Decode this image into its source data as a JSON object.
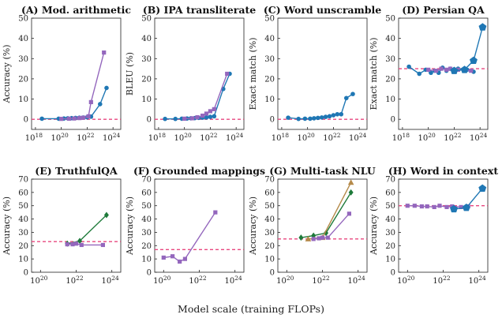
{
  "figure": {
    "xlabel": "Model scale (training FLOPs)",
    "colors": {
      "baseline": "#e8477f",
      "blue": "#1f77b4",
      "purple": "#9467bd",
      "green": "#1e7a3a",
      "brown": "#b58a4a",
      "axis": "#222222"
    }
  },
  "chart_data": [
    {
      "type": "line",
      "title": "(A) Mod. arithmetic",
      "ylabel": "Accuracy (%)",
      "xlog": true,
      "xlim": [
        17.7,
        24.6
      ],
      "ylim": [
        -5,
        50
      ],
      "xticks": [
        18,
        20,
        22,
        24
      ],
      "yticks": [
        0,
        10,
        20,
        30,
        40,
        50
      ],
      "baseline": 0,
      "series": [
        {
          "color": "blue",
          "marker": "circle",
          "x": [
            18.5,
            19.8,
            20.2,
            20.5,
            20.8,
            21.1,
            21.4,
            21.7,
            22.0,
            22.3,
            23.0,
            23.5
          ],
          "y": [
            0.3,
            0.3,
            0.4,
            0.5,
            0.6,
            0.7,
            0.8,
            0.9,
            1.0,
            1.3,
            7.5,
            15.5
          ]
        },
        {
          "color": "purple",
          "marker": "square",
          "x": [
            20.0,
            20.6,
            21.0,
            21.4,
            21.7,
            22.1,
            22.3,
            23.3
          ],
          "y": [
            0.2,
            0.3,
            0.4,
            0.6,
            0.8,
            1.5,
            8.5,
            33.0
          ]
        }
      ]
    },
    {
      "type": "line",
      "title": "(B) IPA transliterate",
      "ylabel": "BLEU (%)",
      "xlog": true,
      "xlim": [
        17.7,
        24.6
      ],
      "ylim": [
        -5,
        50
      ],
      "xticks": [
        18,
        20,
        22,
        24
      ],
      "yticks": [
        0,
        10,
        20,
        30,
        40,
        50
      ],
      "baseline": 0,
      "series": [
        {
          "color": "blue",
          "marker": "circle",
          "x": [
            18.5,
            19.3,
            19.8,
            20.2,
            20.5,
            20.8,
            21.1,
            21.4,
            21.7,
            22.0,
            22.3,
            23.0,
            23.5
          ],
          "y": [
            0.2,
            0.2,
            0.3,
            0.4,
            0.5,
            0.6,
            0.7,
            0.8,
            0.9,
            1.2,
            1.5,
            15.0,
            22.5
          ]
        },
        {
          "color": "purple",
          "marker": "square",
          "x": [
            20.0,
            20.6,
            21.0,
            21.4,
            21.7,
            22.0,
            22.3,
            23.3
          ],
          "y": [
            0.3,
            0.5,
            1.0,
            1.8,
            2.8,
            4.0,
            5.0,
            22.5
          ]
        }
      ]
    },
    {
      "type": "line",
      "title": "(C) Word unscramble",
      "ylabel": "Exact match (%)",
      "xlog": true,
      "xlim": [
        17.7,
        24.6
      ],
      "ylim": [
        -5,
        50
      ],
      "xticks": [
        18,
        20,
        22,
        24
      ],
      "yticks": [
        0,
        10,
        20,
        30,
        40,
        50
      ],
      "baseline": 0,
      "series": [
        {
          "color": "blue",
          "marker": "circle",
          "x": [
            18.5,
            19.3,
            19.8,
            20.2,
            20.5,
            20.8,
            21.1,
            21.4,
            21.7,
            22.0,
            22.3,
            22.6,
            23.0,
            23.5
          ],
          "y": [
            0.8,
            0.2,
            0.3,
            0.3,
            0.5,
            0.7,
            0.9,
            1.2,
            1.5,
            2.0,
            2.5,
            2.5,
            10.5,
            12.5
          ]
        }
      ]
    },
    {
      "type": "line",
      "title": "(D) Persian QA",
      "ylabel": "Exact match (%)",
      "xlog": true,
      "xlim": [
        17.7,
        24.6
      ],
      "ylim": [
        -5,
        50
      ],
      "xticks": [
        18,
        20,
        22,
        24
      ],
      "yticks": [
        0,
        10,
        20,
        30,
        40,
        50
      ],
      "baseline": 25,
      "series": [
        {
          "color": "blue",
          "marker": "circle",
          "x": [
            18.5,
            19.3,
            19.8,
            20.2,
            20.5,
            20.8,
            21.1,
            21.4,
            21.7,
            22.0,
            22.3,
            23.0,
            23.5
          ],
          "y": [
            26.0,
            22.5,
            24.5,
            23.0,
            24.0,
            23.0,
            25.5,
            24.0,
            25.0,
            24.0,
            25.0,
            24.5,
            23.5
          ]
        },
        {
          "color": "purple",
          "marker": "square",
          "x": [
            20.0,
            20.6,
            21.0,
            21.4,
            21.7,
            22.0,
            22.3,
            23.3
          ],
          "y": [
            24.5,
            24.0,
            25.0,
            24.5,
            25.0,
            24.0,
            24.5,
            24.0
          ]
        },
        {
          "color": "blue",
          "marker": "pentagon",
          "x": [
            22.0,
            22.8,
            23.5,
            24.2
          ],
          "y": [
            24.0,
            24.5,
            29.0,
            45.5
          ]
        }
      ]
    },
    {
      "type": "line",
      "title": "(E) TruthfulQA",
      "ylabel": "Accuracy (%)",
      "xlog": true,
      "xlim": [
        19.5,
        24.5
      ],
      "ylim": [
        0,
        70
      ],
      "xticks": [
        20,
        22,
        24
      ],
      "yticks": [
        0,
        10,
        20,
        30,
        40,
        50,
        60,
        70
      ],
      "baseline": 23,
      "series": [
        {
          "color": "green",
          "marker": "diamond",
          "x": [
            21.5,
            22.2,
            23.7
          ],
          "y": [
            21.5,
            23.5,
            43.0
          ]
        },
        {
          "color": "purple",
          "marker": "square",
          "x": [
            21.5,
            21.8,
            22.0,
            22.3,
            23.5
          ],
          "y": [
            21.0,
            21.0,
            21.5,
            20.5,
            20.5
          ]
        }
      ]
    },
    {
      "type": "line",
      "title": "(F) Grounded mappings",
      "ylabel": "Accuracy (%)",
      "xlog": true,
      "xlim": [
        19.5,
        24.5
      ],
      "ylim": [
        0,
        70
      ],
      "xticks": [
        20,
        22,
        24
      ],
      "yticks": [
        0,
        10,
        20,
        30,
        40,
        50,
        60,
        70
      ],
      "baseline": 17,
      "series": [
        {
          "color": "purple",
          "marker": "square",
          "x": [
            20.0,
            20.5,
            20.9,
            21.2,
            22.9
          ],
          "y": [
            11.0,
            12.0,
            8.0,
            10.0,
            45.0
          ]
        }
      ]
    },
    {
      "type": "line",
      "title": "(G) Multi-task NLU",
      "ylabel": "Accuracy (%)",
      "xlog": true,
      "xlim": [
        19.5,
        24.5
      ],
      "ylim": [
        0,
        70
      ],
      "xticks": [
        20,
        22,
        24
      ],
      "yticks": [
        0,
        10,
        20,
        30,
        40,
        50,
        60,
        70
      ],
      "baseline": 25,
      "series": [
        {
          "color": "green",
          "marker": "diamond",
          "x": [
            20.8,
            21.5,
            22.2,
            23.6
          ],
          "y": [
            26.0,
            27.5,
            29.5,
            60.0
          ]
        },
        {
          "color": "brown",
          "marker": "triangle",
          "x": [
            21.2,
            22.0,
            23.6
          ],
          "y": [
            25.0,
            26.0,
            67.5
          ]
        },
        {
          "color": "purple",
          "marker": "square",
          "x": [
            21.5,
            21.8,
            22.0,
            22.3,
            23.5
          ],
          "y": [
            25.0,
            25.5,
            26.0,
            26.0,
            44.0
          ]
        }
      ]
    },
    {
      "type": "line",
      "title": "(H) Word in context",
      "ylabel": "Accuracy (%)",
      "xlog": true,
      "xlim": [
        19.5,
        24.5
      ],
      "ylim": [
        0,
        70
      ],
      "xticks": [
        20,
        22,
        24
      ],
      "yticks": [
        0,
        10,
        20,
        30,
        40,
        50,
        60,
        70
      ],
      "baseline": 50,
      "series": [
        {
          "color": "purple",
          "marker": "square",
          "x": [
            20.0,
            20.4,
            20.8,
            21.1,
            21.5,
            21.8,
            22.2,
            22.5,
            23.0,
            23.4
          ],
          "y": [
            50.0,
            50.0,
            49.5,
            49.5,
            49.0,
            50.0,
            49.0,
            49.5,
            49.0,
            49.5
          ]
        },
        {
          "color": "blue",
          "marker": "pentagon",
          "x": [
            22.6,
            23.3,
            24.2
          ],
          "y": [
            47.5,
            48.5,
            63.0
          ]
        }
      ]
    }
  ]
}
